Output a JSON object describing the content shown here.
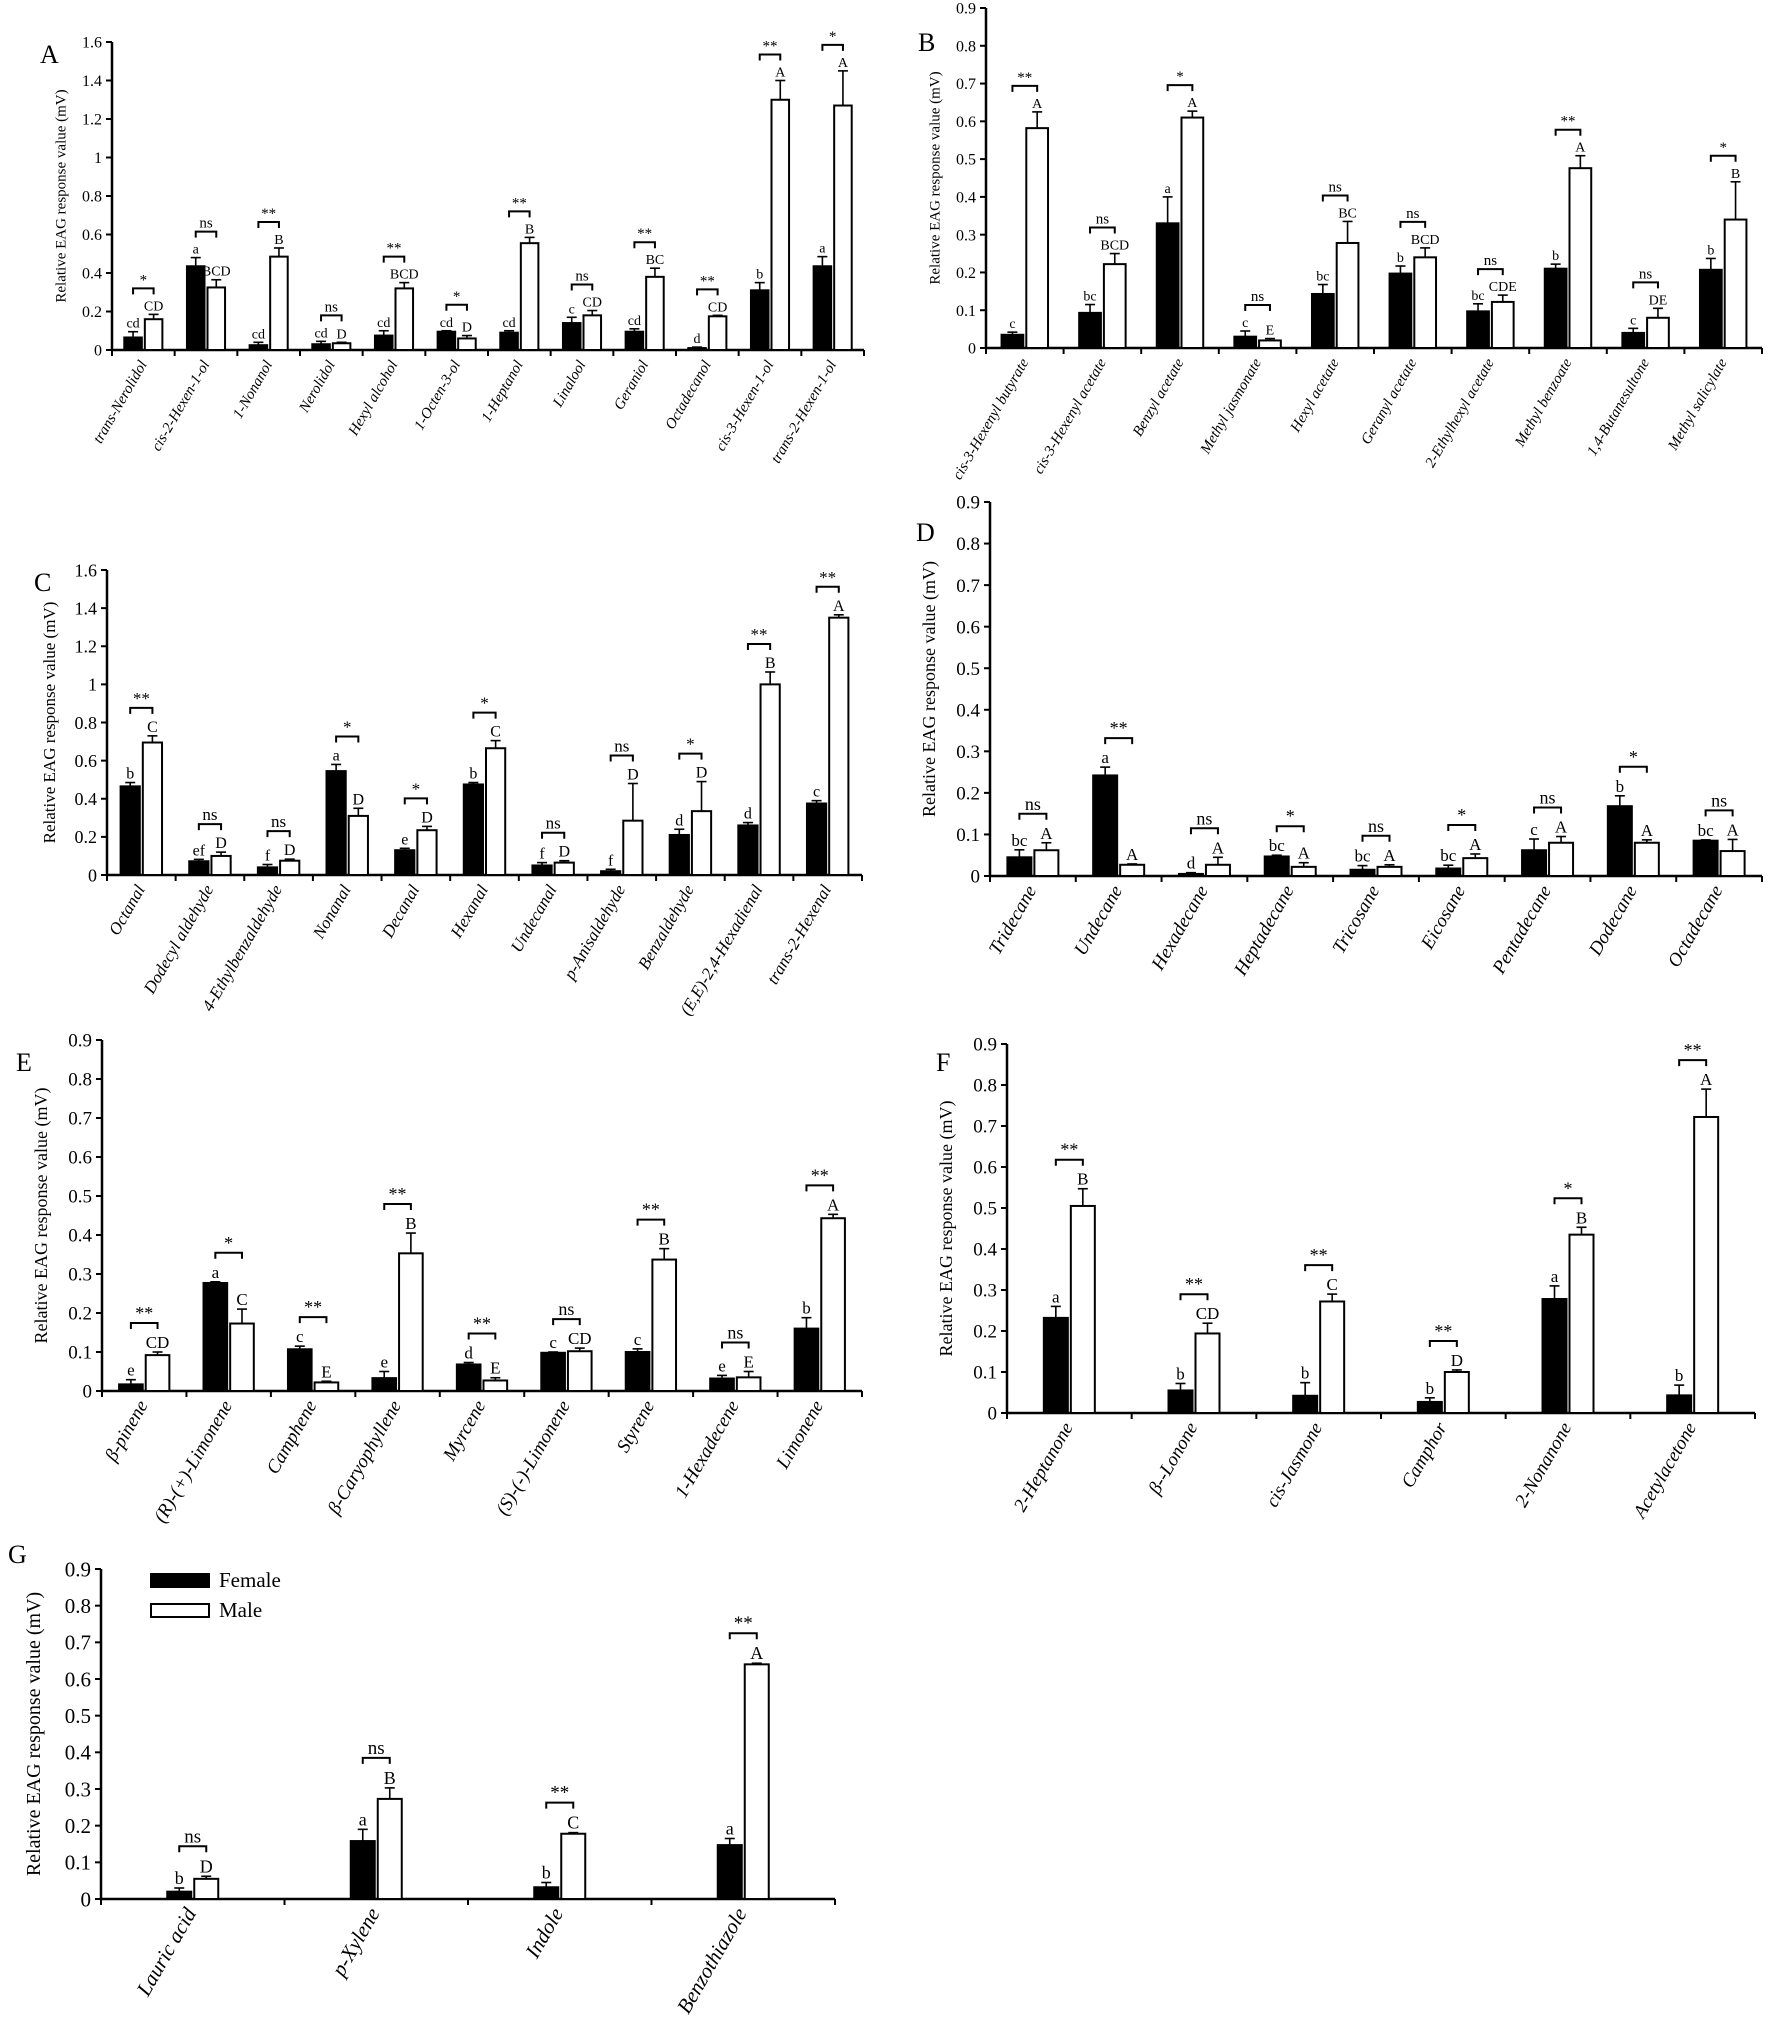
{
  "figure": {
    "legend": {
      "female": "Female",
      "male": "Male"
    },
    "colors": {
      "female": "#000000",
      "male": "#ffffff",
      "stroke": "#000000"
    }
  },
  "chart_data": [
    {
      "panel": "A",
      "type": "bar",
      "ylabel": "Relative EAG response value (mV)",
      "ylim": [
        0,
        1.6
      ],
      "yticks": [
        0,
        0.2,
        0.4,
        0.6,
        0.8,
        1,
        1.2,
        1.4,
        1.6
      ],
      "categories": [
        "trans-Nerolidol",
        "cis-2-Hexen-1-ol",
        "1-Nonanol",
        "Nerolidol",
        "Hexyl alcohol",
        "1-Octen-3-ol",
        "1-Heptanol",
        "Linalool",
        "Geraniol",
        "Octadecanol",
        "cis-3-Hexen-1-ol",
        "trans-2-Hexen-1-ol"
      ],
      "series": [
        {
          "name": "Female",
          "values": [
            0.065,
            0.435,
            0.025,
            0.03,
            0.075,
            0.095,
            0.09,
            0.14,
            0.095,
            0.01,
            0.31,
            0.435
          ],
          "errors": [
            0.03,
            0.045,
            0.015,
            0.015,
            0.025,
            0.005,
            0.01,
            0.03,
            0.015,
            0.005,
            0.04,
            0.05
          ],
          "letters": [
            "cd",
            "a",
            "cd",
            "cd",
            "cd",
            "cd",
            "cd",
            "c",
            "cd",
            "d",
            "b",
            "a"
          ]
        },
        {
          "name": "Male",
          "values": [
            0.16,
            0.325,
            0.485,
            0.035,
            0.32,
            0.06,
            0.555,
            0.18,
            0.38,
            0.175,
            1.3,
            1.27
          ],
          "errors": [
            0.025,
            0.04,
            0.045,
            0.005,
            0.03,
            0.015,
            0.03,
            0.025,
            0.045,
            0.005,
            0.1,
            0.18
          ],
          "letters": [
            "CD",
            "BCD",
            "B",
            "D",
            "BCD",
            "D",
            "B",
            "CD",
            "BC",
            "CD",
            "A",
            "A"
          ]
        }
      ],
      "significance": [
        "*",
        "ns",
        "**",
        "ns",
        "**",
        "*",
        "**",
        "ns",
        "**",
        "**",
        "**",
        "*"
      ]
    },
    {
      "panel": "B",
      "type": "bar",
      "ylabel": "Relative EAG response value (mV)",
      "ylim": [
        0,
        0.9
      ],
      "yticks": [
        0,
        0.1,
        0.2,
        0.3,
        0.4,
        0.5,
        0.6,
        0.7,
        0.8,
        0.9
      ],
      "categories": [
        "cis-3-Hexenyl butyrate",
        "cis-3-Hexenyl acetate",
        "Benzyl acetate",
        "Methyl jasmonate",
        "Hexyl acetate",
        "Geranyl acetate",
        "2-Ethylhexyl acetate",
        "Methyl benzoate",
        "1,4-Butanesultone",
        "Methyl salicylate"
      ],
      "series": [
        {
          "name": "Female",
          "values": [
            0.035,
            0.093,
            0.33,
            0.03,
            0.143,
            0.197,
            0.097,
            0.21,
            0.04,
            0.207
          ],
          "errors": [
            0.007,
            0.022,
            0.07,
            0.015,
            0.025,
            0.02,
            0.02,
            0.012,
            0.012,
            0.03
          ],
          "letters": [
            "c",
            "bc",
            "a",
            "c",
            "bc",
            "b",
            "bc",
            "b",
            "c",
            "b"
          ]
        },
        {
          "name": "Male",
          "values": [
            0.582,
            0.222,
            0.61,
            0.02,
            0.278,
            0.24,
            0.122,
            0.476,
            0.08,
            0.34
          ],
          "errors": [
            0.043,
            0.028,
            0.017,
            0.005,
            0.057,
            0.025,
            0.018,
            0.033,
            0.025,
            0.1
          ],
          "letters": [
            "A",
            "BCD",
            "A",
            "E",
            "BC",
            "BCD",
            "CDE",
            "A",
            "DE",
            "B"
          ]
        }
      ],
      "significance": [
        "**",
        "ns",
        "*",
        "ns",
        "ns",
        "ns",
        "ns",
        "**",
        "ns",
        "*"
      ]
    },
    {
      "panel": "C",
      "type": "bar",
      "ylabel": "Relative EAG response value (mV)",
      "ylim": [
        0,
        1.6
      ],
      "yticks": [
        0,
        0.2,
        0.4,
        0.6,
        0.8,
        1,
        1.2,
        1.4,
        1.6
      ],
      "categories": [
        "Octanal",
        "Dodecyl aldehyde",
        "4-Ethylbenzaldehyde",
        "Nonanal",
        "Decanal",
        "Hexanal",
        "Undecanal",
        "p-Anisaldehyde",
        "Benzaldehyde",
        "(E,E)-2,4-Hexadienal",
        "trans-2-Hexenal"
      ],
      "series": [
        {
          "name": "Female",
          "values": [
            0.465,
            0.072,
            0.04,
            0.545,
            0.13,
            0.475,
            0.05,
            0.02,
            0.21,
            0.26,
            0.375
          ],
          "errors": [
            0.02,
            0.01,
            0.015,
            0.035,
            0.01,
            0.01,
            0.015,
            0.01,
            0.03,
            0.015,
            0.015
          ],
          "letters": [
            "b",
            "ef",
            "f",
            "a",
            "e",
            "b",
            "f",
            "f",
            "d",
            "d",
            "c"
          ]
        },
        {
          "name": "Male",
          "values": [
            0.695,
            0.1,
            0.075,
            0.31,
            0.235,
            0.665,
            0.065,
            0.285,
            0.335,
            1.0,
            1.35
          ],
          "errors": [
            0.035,
            0.02,
            0.008,
            0.04,
            0.02,
            0.04,
            0.01,
            0.195,
            0.155,
            0.065,
            0.015
          ],
          "letters": [
            "C",
            "D",
            "D",
            "D",
            "D",
            "C",
            "D",
            "D",
            "D",
            "B",
            "A"
          ]
        }
      ],
      "significance": [
        "**",
        "ns",
        "ns",
        "*",
        "*",
        "*",
        "ns",
        "ns",
        "*",
        "**",
        "**"
      ]
    },
    {
      "panel": "D",
      "type": "bar",
      "ylabel": "Relative EAG response value (mV)",
      "ylim": [
        0,
        0.9
      ],
      "yticks": [
        0,
        0.1,
        0.2,
        0.3,
        0.4,
        0.5,
        0.6,
        0.7,
        0.8,
        0.9
      ],
      "categories": [
        "Tridecane",
        "Undecane",
        "Hexadecane",
        "Heptadecane",
        "Tricosane",
        "Eicosane",
        "Pentadecane",
        "Dodecane",
        "Octadecane"
      ],
      "series": [
        {
          "name": "Female",
          "values": [
            0.045,
            0.242,
            0.005,
            0.047,
            0.015,
            0.018,
            0.062,
            0.168,
            0.085
          ],
          "errors": [
            0.018,
            0.02,
            0.003,
            0.003,
            0.01,
            0.008,
            0.027,
            0.025,
            0.002
          ],
          "letters": [
            "bc",
            "a",
            "d",
            "bc",
            "bc",
            "bc",
            "c",
            "b",
            "bc"
          ]
        },
        {
          "name": "Male",
          "values": [
            0.062,
            0.027,
            0.027,
            0.022,
            0.022,
            0.043,
            0.08,
            0.08,
            0.06
          ],
          "errors": [
            0.018,
            0.002,
            0.018,
            0.01,
            0.005,
            0.01,
            0.015,
            0.007,
            0.028
          ],
          "letters": [
            "A",
            "A",
            "A",
            "A",
            "A",
            "A",
            "A",
            "A",
            "A"
          ]
        }
      ],
      "significance": [
        "ns",
        "**",
        "ns",
        "*",
        "ns",
        "*",
        "ns",
        "*",
        "ns"
      ]
    },
    {
      "panel": "E",
      "type": "bar",
      "ylabel": "Relative EAG response value (mV)",
      "ylim": [
        0,
        0.9
      ],
      "yticks": [
        0,
        0.1,
        0.2,
        0.3,
        0.4,
        0.5,
        0.6,
        0.7,
        0.8,
        0.9
      ],
      "categories": [
        "β-pinene",
        "(R)-(+)-Limonene",
        "Camphene",
        "β-Caryophyllene",
        "Myrcene",
        "(S)-(-)-Limonene",
        "Styrene",
        "1-Hexadecene",
        "Limonene"
      ],
      "series": [
        {
          "name": "Female",
          "values": [
            0.017,
            0.277,
            0.107,
            0.033,
            0.068,
            0.098,
            0.1,
            0.032,
            0.16
          ],
          "errors": [
            0.012,
            0.003,
            0.008,
            0.017,
            0.005,
            0.002,
            0.008,
            0.008,
            0.028
          ],
          "letters": [
            "e",
            "a",
            "c",
            "e",
            "d",
            "c",
            "c",
            "e",
            "b"
          ]
        },
        {
          "name": "Male",
          "values": [
            0.092,
            0.173,
            0.022,
            0.353,
            0.027,
            0.102,
            0.337,
            0.035,
            0.443
          ],
          "errors": [
            0.008,
            0.037,
            0.003,
            0.052,
            0.007,
            0.008,
            0.028,
            0.015,
            0.01
          ],
          "letters": [
            "CD",
            "C",
            "E",
            "B",
            "E",
            "CD",
            "B",
            "E",
            "A"
          ]
        }
      ],
      "significance": [
        "**",
        "*",
        "**",
        "**",
        "**",
        "ns",
        "**",
        "ns",
        "**"
      ]
    },
    {
      "panel": "F",
      "type": "bar",
      "ylabel": "Relative EAG response value (mV)",
      "ylim": [
        0,
        0.9
      ],
      "yticks": [
        0,
        0.1,
        0.2,
        0.3,
        0.4,
        0.5,
        0.6,
        0.7,
        0.8,
        0.9
      ],
      "categories": [
        "2-Heptanone",
        "β--Lonone",
        "cis-Jasmone",
        "Camphor",
        "2-Nonanone",
        "Acetylacetone"
      ],
      "series": [
        {
          "name": "Female",
          "values": [
            0.232,
            0.055,
            0.042,
            0.027,
            0.278,
            0.043
          ],
          "errors": [
            0.028,
            0.017,
            0.032,
            0.01,
            0.032,
            0.025
          ],
          "letters": [
            "a",
            "b",
            "b",
            "b",
            "a",
            "b"
          ]
        },
        {
          "name": "Male",
          "values": [
            0.505,
            0.194,
            0.272,
            0.1,
            0.435,
            0.722
          ],
          "errors": [
            0.042,
            0.025,
            0.018,
            0.005,
            0.018,
            0.068
          ],
          "letters": [
            "B",
            "CD",
            "C",
            "D",
            "B",
            "A"
          ]
        }
      ],
      "significance": [
        "**",
        "**",
        "**",
        "**",
        "*",
        "**"
      ]
    },
    {
      "panel": "G",
      "type": "bar",
      "ylabel": "Relative EAG response value (mV)",
      "ylim": [
        0,
        0.9
      ],
      "yticks": [
        0,
        0.1,
        0.2,
        0.3,
        0.4,
        0.5,
        0.6,
        0.7,
        0.8,
        0.9
      ],
      "legend_entries": [
        "Female",
        "Male"
      ],
      "categories": [
        "Lauric acid",
        "p-Xylene",
        "Indole",
        "Benzothiazole"
      ],
      "series": [
        {
          "name": "Female",
          "values": [
            0.02,
            0.158,
            0.032,
            0.147
          ],
          "errors": [
            0.01,
            0.032,
            0.013,
            0.018
          ],
          "letters": [
            "b",
            "a",
            "b",
            "a"
          ]
        },
        {
          "name": "Male",
          "values": [
            0.055,
            0.273,
            0.178,
            0.64
          ],
          "errors": [
            0.007,
            0.03,
            0.003,
            0.003
          ],
          "letters": [
            "D",
            "B",
            "C",
            "A"
          ]
        }
      ],
      "significance": [
        "ns",
        "ns",
        "**",
        "**"
      ]
    }
  ]
}
